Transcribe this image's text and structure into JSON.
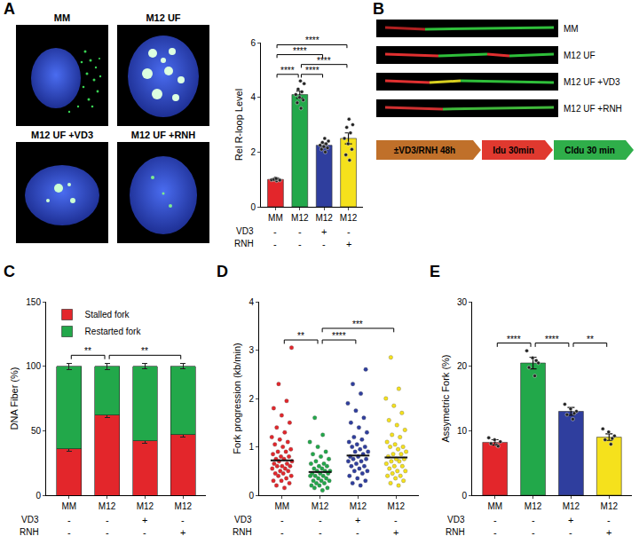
{
  "micrographs": {
    "panel": "A",
    "labels": [
      "MM",
      "M12 UF",
      "M12 UF +VD3",
      "M12 UF +RNH"
    ]
  },
  "fibers": {
    "panel": "B",
    "labels": [
      "MM",
      "M12 UF",
      "M12 UF +VD3",
      "M12 UF +RNH"
    ],
    "protocol": [
      "±VD3/RNH 48h",
      "Idu 30min",
      "Cldu 30 min"
    ]
  },
  "chart_data": [
    {
      "panel": "A",
      "type": "bar",
      "y_label": "Rel R-loop Level",
      "categories": [
        "MM",
        "M12",
        "M12",
        "M12"
      ],
      "treatments": [
        {
          "name": "VD3",
          "marks": [
            "-",
            "-",
            "+",
            "-"
          ]
        },
        {
          "name": "RNH",
          "marks": [
            "-",
            "-",
            "-",
            "+"
          ]
        }
      ],
      "colors": [
        "#e3262b",
        "#22a84a",
        "#2f3e9e",
        "#f5e11c"
      ],
      "values": [
        1.0,
        4.1,
        2.25,
        2.5
      ],
      "errors": [
        0.03,
        0.13,
        0.07,
        0.2
      ],
      "points": [
        [
          0.95,
          1.0,
          1.0,
          1.05,
          0.98,
          1.02,
          1.0,
          0.97,
          1.03
        ],
        [
          3.6,
          3.8,
          3.9,
          4.0,
          4.1,
          4.2,
          4.3,
          4.5,
          4.6
        ],
        [
          2.0,
          2.1,
          2.15,
          2.2,
          2.25,
          2.3,
          2.35,
          2.4,
          2.5
        ],
        [
          1.7,
          1.9,
          2.1,
          2.3,
          2.5,
          2.7,
          2.9,
          3.0,
          3.2
        ]
      ],
      "ylim": [
        0,
        6
      ],
      "yticks": [
        0,
        2,
        4,
        6
      ],
      "grid": false,
      "significance": [
        {
          "pair": [
            0,
            1
          ],
          "label": "****"
        },
        {
          "pair": [
            1,
            2
          ],
          "label": "****"
        },
        {
          "pair": [
            1,
            3
          ],
          "label": "****"
        },
        {
          "pair": [
            0,
            2
          ],
          "label": "****"
        },
        {
          "pair": [
            0,
            3
          ],
          "label": "****"
        }
      ]
    },
    {
      "panel": "C",
      "type": "bar",
      "stacked": true,
      "legend": "top-left",
      "y_label": "DNA Fiber (%)",
      "categories": [
        "MM",
        "M12",
        "M12",
        "M12"
      ],
      "treatments": [
        {
          "name": "VD3",
          "marks": [
            "-",
            "-",
            "+",
            "-"
          ]
        },
        {
          "name": "RNH",
          "marks": [
            "-",
            "-",
            "-",
            "+"
          ]
        }
      ],
      "series": [
        {
          "name": "Stalled fork",
          "color": "#e3262b",
          "values": [
            36,
            62,
            42,
            47
          ],
          "errors": [
            2,
            2,
            2,
            2
          ]
        },
        {
          "name": "Restarted fork",
          "color": "#22a84a",
          "values": [
            64,
            38,
            58,
            53
          ],
          "errors": [
            2.5,
            2.5,
            2,
            2
          ]
        }
      ],
      "ylim": [
        0,
        150
      ],
      "yticks": [
        0,
        50,
        100,
        150
      ],
      "grid": false,
      "significance": [
        {
          "pair": [
            0,
            1
          ],
          "label": "**"
        },
        {
          "pair": [
            1,
            3
          ],
          "label": "**"
        }
      ]
    },
    {
      "panel": "D",
      "type": "strip",
      "y_label": "Fork progression (kb/min)",
      "categories": [
        "MM",
        "M12",
        "M12",
        "M12"
      ],
      "treatments": [
        {
          "name": "VD3",
          "marks": [
            "-",
            "-",
            "+",
            "-"
          ]
        },
        {
          "name": "RNH",
          "marks": [
            "-",
            "-",
            "-",
            "+"
          ]
        }
      ],
      "colors": [
        "#e3262b",
        "#22a84a",
        "#2f3e9e",
        "#f5e11c"
      ],
      "points": [
        [
          0.15,
          0.2,
          0.25,
          0.3,
          0.3,
          0.35,
          0.4,
          0.4,
          0.45,
          0.45,
          0.5,
          0.5,
          0.55,
          0.55,
          0.6,
          0.6,
          0.6,
          0.65,
          0.65,
          0.7,
          0.7,
          0.75,
          0.75,
          0.8,
          0.8,
          0.85,
          0.9,
          0.9,
          0.95,
          1.0,
          1.05,
          1.1,
          1.15,
          1.2,
          1.3,
          1.4,
          1.5,
          1.65,
          1.8,
          1.95,
          2.3,
          3.05
        ],
        [
          0.1,
          0.15,
          0.15,
          0.2,
          0.2,
          0.25,
          0.25,
          0.3,
          0.3,
          0.3,
          0.35,
          0.35,
          0.4,
          0.4,
          0.4,
          0.45,
          0.45,
          0.45,
          0.5,
          0.5,
          0.5,
          0.55,
          0.55,
          0.6,
          0.6,
          0.65,
          0.65,
          0.7,
          0.75,
          0.8,
          0.85,
          0.9,
          1.0,
          1.1,
          1.25,
          1.6
        ],
        [
          0.2,
          0.25,
          0.3,
          0.35,
          0.4,
          0.45,
          0.5,
          0.5,
          0.55,
          0.6,
          0.6,
          0.65,
          0.7,
          0.7,
          0.75,
          0.75,
          0.8,
          0.8,
          0.85,
          0.9,
          0.9,
          0.95,
          1.0,
          1.0,
          1.05,
          1.1,
          1.15,
          1.2,
          1.3,
          1.4,
          1.5,
          1.6,
          1.75,
          1.9,
          2.1,
          2.3,
          2.6
        ],
        [
          0.2,
          0.25,
          0.3,
          0.35,
          0.4,
          0.4,
          0.45,
          0.5,
          0.5,
          0.55,
          0.6,
          0.6,
          0.65,
          0.7,
          0.7,
          0.75,
          0.75,
          0.8,
          0.85,
          0.85,
          0.9,
          0.95,
          1.0,
          1.0,
          1.05,
          1.1,
          1.2,
          1.25,
          1.35,
          1.45,
          1.55,
          1.7,
          1.85,
          2.0,
          2.2,
          2.85
        ]
      ],
      "means": [
        0.72,
        0.48,
        0.82,
        0.78
      ],
      "ylim": [
        0,
        4
      ],
      "yticks": [
        0,
        1,
        2,
        3,
        4
      ],
      "grid": false,
      "significance": [
        {
          "pair": [
            0,
            1
          ],
          "label": "**"
        },
        {
          "pair": [
            1,
            2
          ],
          "label": "****"
        },
        {
          "pair": [
            1,
            3
          ],
          "label": "***"
        }
      ]
    },
    {
      "panel": "E",
      "type": "bar",
      "y_label": "Assymetric Fork (%)",
      "categories": [
        "MM",
        "M12",
        "M12",
        "M12"
      ],
      "treatments": [
        {
          "name": "VD3",
          "marks": [
            "-",
            "-",
            "+",
            "-"
          ]
        },
        {
          "name": "RNH",
          "marks": [
            "-",
            "-",
            "-",
            "+"
          ]
        }
      ],
      "colors": [
        "#e3262b",
        "#22a84a",
        "#2f3e9e",
        "#f5e11c"
      ],
      "values": [
        8.2,
        20.5,
        13.0,
        9.0
      ],
      "errors": [
        0.4,
        0.9,
        0.6,
        0.5
      ],
      "points": [
        [
          7.8,
          8.0,
          8.3,
          8.6,
          8.9,
          7.6
        ],
        [
          18.5,
          19.8,
          20.5,
          21.3,
          22.4,
          20.9
        ],
        [
          11.8,
          12.5,
          13.0,
          13.4,
          14.1,
          12.7
        ],
        [
          7.9,
          8.6,
          9.2,
          9.8,
          10.3,
          8.8
        ]
      ],
      "ylim": [
        0,
        30
      ],
      "yticks": [
        0,
        10,
        20,
        30
      ],
      "grid": false,
      "significance": [
        {
          "pair": [
            0,
            1
          ],
          "label": "****"
        },
        {
          "pair": [
            1,
            2
          ],
          "label": "****"
        },
        {
          "pair": [
            2,
            3
          ],
          "label": "**"
        }
      ]
    }
  ]
}
